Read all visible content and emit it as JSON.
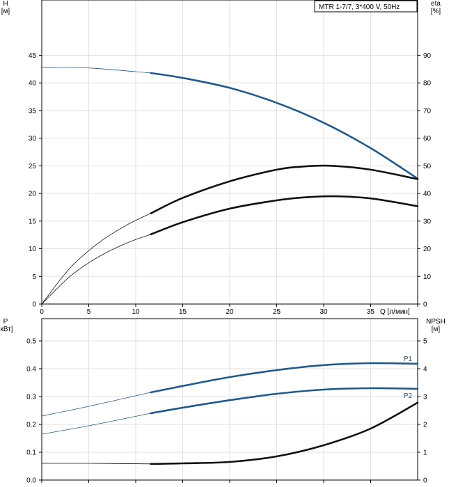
{
  "chart_data": [
    {
      "type": "line",
      "title": "MTR 1-7/7, 3*400 V, 50Hz",
      "ylabel_left": [
        "H",
        "[м]"
      ],
      "ylabel_right": [
        "eta",
        "[%]"
      ],
      "xlabel": "Q [л/мин]",
      "xlim": [
        0,
        40
      ],
      "ylim_left": [
        0,
        55
      ],
      "ylim_right": [
        0,
        110
      ],
      "x_ticks": [
        0,
        5,
        10,
        15,
        20,
        25,
        30,
        35
      ],
      "y_ticks_left": [
        0,
        5,
        10,
        15,
        20,
        25,
        30,
        35,
        40,
        45
      ],
      "y_ticks_right": [
        0,
        10,
        20,
        30,
        40,
        50,
        60,
        70,
        80,
        90
      ],
      "grid": true,
      "series": [
        {
          "axis": "left",
          "color": "#1f5a8f",
          "thin_segment": [
            [
              0,
              42.8
            ],
            [
              5,
              42.7
            ],
            [
              11.6,
              41.8
            ]
          ],
          "thick_segment": [
            [
              11.6,
              41.8
            ],
            [
              15,
              40.9
            ],
            [
              20,
              39.1
            ],
            [
              25,
              36.4
            ],
            [
              30,
              32.8
            ],
            [
              35,
              28.2
            ],
            [
              40,
              22.7
            ]
          ]
        },
        {
          "axis": "right",
          "color": "#111111",
          "thin_segment": [
            [
              0,
              0
            ],
            [
              3,
              13
            ],
            [
              6,
              22
            ],
            [
              9,
              28.5
            ],
            [
              11.6,
              32.8
            ]
          ],
          "thick_segment": [
            [
              11.6,
              32.8
            ],
            [
              15,
              38.4
            ],
            [
              20,
              44.4
            ],
            [
              25,
              48.6
            ],
            [
              28,
              49.8
            ],
            [
              31,
              50
            ],
            [
              35,
              48.6
            ],
            [
              40,
              45.2
            ]
          ]
        },
        {
          "axis": "right",
          "color": "#111111",
          "thin_segment": [
            [
              0,
              0
            ],
            [
              3,
              10
            ],
            [
              6,
              17
            ],
            [
              9,
              22
            ],
            [
              11.6,
              25.2
            ]
          ],
          "thick_segment": [
            [
              11.6,
              25.2
            ],
            [
              15,
              29.6
            ],
            [
              20,
              34.5
            ],
            [
              25,
              37.5
            ],
            [
              28,
              38.6
            ],
            [
              31,
              39
            ],
            [
              35,
              38.2
            ],
            [
              40,
              35.4
            ]
          ]
        }
      ]
    },
    {
      "type": "line",
      "ylabel_left": [
        "P",
        "[кВт]"
      ],
      "ylabel_right": [
        "NPSH",
        "[м]"
      ],
      "xlim": [
        0,
        40
      ],
      "ylim_left": [
        0,
        0.58
      ],
      "ylim_right": [
        0,
        5.8
      ],
      "y_ticks_left": [
        "0.0",
        "0.1",
        "0.2",
        "0.3",
        "0.4",
        "0.5"
      ],
      "y_ticks_right": [
        0,
        1,
        2,
        3,
        4,
        5
      ],
      "grid": true,
      "series": [
        {
          "name": "P1",
          "axis": "left",
          "color": "#1f5a8f",
          "thin_segment": [
            [
              0,
              0.23
            ],
            [
              5,
              0.265
            ],
            [
              11.6,
              0.315
            ]
          ],
          "thick_segment": [
            [
              11.6,
              0.315
            ],
            [
              15,
              0.338
            ],
            [
              20,
              0.37
            ],
            [
              25,
              0.395
            ],
            [
              30,
              0.413
            ],
            [
              35,
              0.42
            ],
            [
              40,
              0.418
            ]
          ]
        },
        {
          "name": "P2",
          "axis": "left",
          "color": "#1f5a8f",
          "thin_segment": [
            [
              0,
              0.165
            ],
            [
              5,
              0.195
            ],
            [
              11.6,
              0.24
            ]
          ],
          "thick_segment": [
            [
              11.6,
              0.24
            ],
            [
              15,
              0.26
            ],
            [
              20,
              0.287
            ],
            [
              25,
              0.31
            ],
            [
              30,
              0.325
            ],
            [
              35,
              0.33
            ],
            [
              40,
              0.328
            ]
          ]
        },
        {
          "axis": "right",
          "color": "#111111",
          "thin_segment": [
            [
              0,
              0.6
            ],
            [
              5,
              0.6
            ],
            [
              11.6,
              0.58
            ]
          ],
          "thick_segment": [
            [
              11.6,
              0.58
            ],
            [
              15,
              0.6
            ],
            [
              20,
              0.65
            ],
            [
              25,
              0.85
            ],
            [
              30,
              1.25
            ],
            [
              35,
              1.85
            ],
            [
              40,
              2.78
            ]
          ]
        }
      ]
    }
  ]
}
